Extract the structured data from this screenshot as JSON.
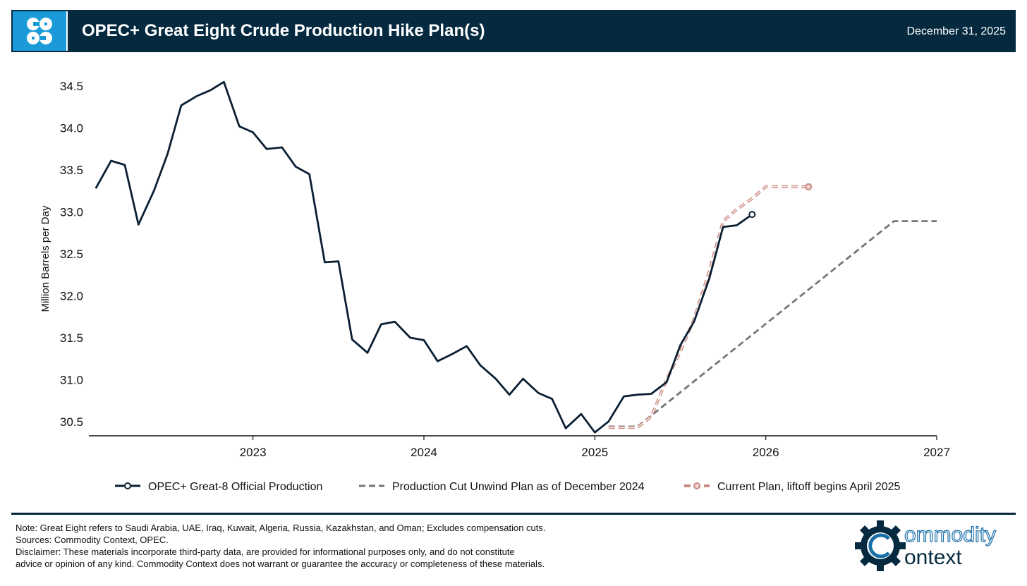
{
  "header": {
    "title": "OPEC+ Great Eight Crude Production Hike Plan(s)",
    "date": "December 31, 2025",
    "logo_icon": "opec-logo-icon"
  },
  "colors": {
    "header_bg": "#052a40",
    "logo_bg": "#1a9ad9",
    "production": "#0b1f33",
    "unwind_plan": "#777777",
    "current_plan": "#c98a80"
  },
  "chart_data": {
    "type": "line",
    "title": "",
    "xlabel": "",
    "ylabel": "Million Barrels per Day",
    "xlim": [
      2022.04,
      2027.0
    ],
    "ylim": [
      30.33,
      34.72
    ],
    "x_ticks": [
      2023,
      2024,
      2025,
      2026,
      2027
    ],
    "x_tick_labels": [
      "2023",
      "2024",
      "2025",
      "2026",
      "2027"
    ],
    "y_ticks": [
      30.5,
      31.0,
      31.5,
      32.0,
      32.5,
      33.0,
      33.5,
      34.0,
      34.5
    ],
    "y_tick_labels": [
      "30.5",
      "31.0",
      "31.5",
      "32.0",
      "32.5",
      "33.0",
      "33.5",
      "34.0",
      "34.5"
    ],
    "grid": false,
    "legend_position": "bottom",
    "series": [
      {
        "name": "OPEC+ Great-8 Official Production",
        "style": "solid",
        "end_marker": "open-circle",
        "x": [
          2022.08,
          2022.17,
          2022.25,
          2022.33,
          2022.42,
          2022.5,
          2022.58,
          2022.67,
          2022.75,
          2022.83,
          2022.92,
          2023.0,
          2023.08,
          2023.17,
          2023.25,
          2023.33,
          2023.42,
          2023.5,
          2023.58,
          2023.67,
          2023.75,
          2023.83,
          2023.92,
          2024.0,
          2024.08,
          2024.17,
          2024.25,
          2024.33,
          2024.42,
          2024.5,
          2024.58,
          2024.67,
          2024.75,
          2024.83,
          2024.92,
          2025.0,
          2025.08,
          2025.17,
          2025.25,
          2025.33,
          2025.42,
          2025.5,
          2025.58,
          2025.67,
          2025.75,
          2025.83,
          2025.92
        ],
        "values": [
          33.28,
          33.61,
          33.56,
          32.85,
          33.25,
          33.69,
          34.27,
          34.38,
          34.45,
          34.55,
          34.02,
          33.95,
          33.75,
          33.77,
          33.54,
          33.45,
          32.4,
          32.41,
          31.48,
          31.32,
          31.66,
          31.69,
          31.5,
          31.47,
          31.22,
          31.31,
          31.4,
          31.17,
          31.01,
          30.82,
          31.01,
          30.84,
          30.77,
          30.42,
          30.59,
          30.37,
          30.5,
          30.8,
          30.82,
          30.83,
          30.97,
          31.41,
          31.69,
          32.21,
          32.82,
          32.84,
          32.97
        ]
      },
      {
        "name": "Production Cut Unwind Plan as of December 2024",
        "style": "dashed",
        "x": [
          2025.08,
          2025.25,
          2026.75,
          2027.0
        ],
        "values": [
          30.44,
          30.44,
          32.89,
          32.89
        ]
      },
      {
        "name": "Current Plan, liftoff begins April 2025",
        "style": "dashed",
        "end_marker": "open-circle",
        "x": [
          2025.08,
          2025.25,
          2025.33,
          2025.42,
          2025.5,
          2025.58,
          2025.67,
          2025.75,
          2025.83,
          2025.92,
          2026.0,
          2026.25
        ],
        "values": [
          30.43,
          30.43,
          30.56,
          31.0,
          31.33,
          31.72,
          32.3,
          32.89,
          33.03,
          33.16,
          33.3,
          33.3
        ]
      }
    ]
  },
  "footer": {
    "note": "Note: Great Eight refers to Saudi Arabia, UAE, Iraq, Kuwait, Algeria, Russia, Kazakhstan, and Oman; Excludes compensation cuts.",
    "sources": "Sources: Commodity Context, OPEC.",
    "disclaimer_line1": "Disclaimer: These materials incorporate third-party data, are provided for informational purposes only, and do not constitute",
    "disclaimer_line2": "advice or opinion of any kind. Commodity Context does not warrant or guarantee the accuracy or completeness of these materials.",
    "brand_line1": "ommodity",
    "brand_line2": "ontext",
    "brand_icon": "commodity-context-gear-logo-icon"
  }
}
